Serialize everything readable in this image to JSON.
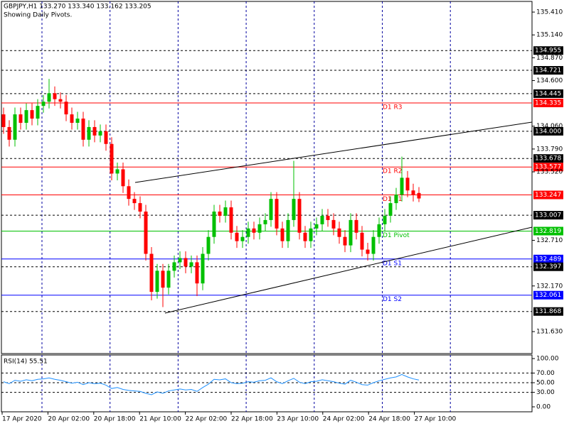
{
  "chart_data": {
    "type": "candlestick",
    "header": "GBPJPY,H1  133.270 133.340 133.162 133.205",
    "subtitle": "Showing Daily Pivots.",
    "up_color": "#00c000",
    "down_color": "#ff0000",
    "ylim": [
      131.37,
      135.553
    ],
    "yticks": [
      {
        "value": 135.41,
        "label": "135.410"
      },
      {
        "value": 135.14,
        "label": "135.140"
      },
      {
        "value": 134.87,
        "label": "134.870"
      },
      {
        "value": 134.6,
        "label": "134.600"
      },
      {
        "value": 134.06,
        "label": "134.060"
      },
      {
        "value": 133.79,
        "label": "133.790"
      },
      {
        "value": 133.52,
        "label": "133.520"
      },
      {
        "value": 132.71,
        "label": "132.710"
      },
      {
        "value": 132.17,
        "label": "132.170"
      },
      {
        "value": 131.63,
        "label": "131.630"
      }
    ],
    "x_labels": [
      "17 Apr 2020",
      "20 Apr 02:00",
      "20 Apr 18:00",
      "21 Apr 10:00",
      "22 Apr 02:00",
      "22 Apr 18:00",
      "23 Apr 10:00",
      "24 Apr 02:00",
      "24 Apr 18:00",
      "27 Apr 10:00"
    ],
    "open": [
      134.2,
      134.05,
      133.9,
      134.2,
      134.1,
      134.25,
      134.15,
      134.3,
      134.35,
      134.45,
      134.38,
      134.35,
      134.2,
      134.1,
      134.15,
      133.9,
      134.05,
      133.95,
      134.0,
      133.85,
      133.5,
      133.55,
      133.35,
      133.2,
      133.15,
      133.05,
      132.55,
      132.1,
      132.35,
      132.15,
      132.35,
      132.45,
      132.5,
      132.4,
      132.45,
      132.2,
      132.55,
      132.75,
      133.05,
      133.0,
      133.1,
      132.8,
      132.7,
      132.75,
      132.85,
      132.8,
      132.9,
      132.95,
      133.2,
      132.85,
      132.7,
      132.95,
      133.2,
      132.8,
      132.7,
      132.85,
      132.9,
      133.0,
      132.95,
      132.85,
      132.75,
      132.65,
      132.95,
      132.8,
      132.6,
      132.55,
      132.75,
      132.9,
      133.0,
      133.15,
      133.25,
      133.45,
      133.3,
      133.27
    ],
    "high": [
      134.28,
      134.13,
      134.28,
      134.28,
      134.33,
      134.33,
      134.38,
      134.43,
      134.62,
      134.53,
      134.46,
      134.43,
      134.28,
      134.23,
      134.23,
      134.13,
      134.13,
      134.08,
      134.08,
      133.93,
      133.63,
      133.63,
      133.43,
      133.28,
      133.23,
      133.13,
      132.63,
      132.43,
      132.43,
      132.43,
      132.53,
      132.58,
      132.58,
      132.53,
      132.53,
      132.63,
      132.83,
      133.13,
      133.13,
      133.18,
      133.18,
      132.88,
      132.83,
      132.93,
      132.93,
      132.98,
      133.03,
      133.28,
      133.28,
      132.93,
      133.03,
      133.65,
      133.28,
      132.88,
      132.93,
      132.98,
      133.08,
      133.08,
      133.03,
      132.93,
      132.83,
      133.03,
      133.03,
      132.88,
      132.68,
      132.83,
      132.98,
      133.08,
      133.23,
      133.33,
      133.7,
      133.53,
      133.38,
      133.34
    ],
    "low": [
      133.97,
      133.82,
      133.82,
      134.02,
      134.02,
      134.07,
      134.07,
      134.22,
      134.27,
      134.3,
      134.27,
      134.12,
      134.02,
      134.02,
      133.82,
      133.82,
      133.87,
      133.87,
      133.77,
      133.42,
      133.42,
      133.27,
      133.12,
      133.07,
      132.97,
      132.47,
      132.0,
      132.02,
      131.92,
      132.07,
      132.27,
      132.37,
      132.32,
      132.32,
      132.05,
      132.12,
      132.47,
      132.67,
      132.92,
      132.92,
      132.72,
      132.62,
      132.62,
      132.67,
      132.72,
      132.72,
      132.82,
      132.87,
      132.77,
      132.62,
      132.62,
      132.87,
      132.72,
      132.62,
      132.62,
      132.77,
      132.82,
      132.87,
      132.77,
      132.67,
      132.57,
      132.57,
      132.72,
      132.52,
      132.47,
      132.47,
      132.67,
      132.82,
      132.92,
      133.07,
      133.17,
      133.22,
      133.17,
      133.162
    ],
    "close": [
      134.05,
      133.9,
      134.2,
      134.1,
      134.25,
      134.15,
      134.3,
      134.35,
      134.45,
      134.38,
      134.35,
      134.2,
      134.1,
      134.15,
      133.9,
      134.05,
      133.95,
      134.0,
      133.85,
      133.5,
      133.55,
      133.35,
      133.2,
      133.15,
      133.05,
      132.55,
      132.1,
      132.35,
      132.15,
      132.35,
      132.45,
      132.5,
      132.4,
      132.45,
      132.2,
      132.55,
      132.75,
      133.05,
      133.0,
      133.1,
      132.8,
      132.7,
      132.75,
      132.85,
      132.8,
      132.9,
      132.95,
      133.2,
      132.85,
      132.7,
      132.95,
      133.2,
      132.8,
      132.7,
      132.85,
      132.9,
      133.0,
      132.95,
      132.85,
      132.75,
      132.65,
      132.95,
      132.8,
      132.6,
      132.55,
      132.75,
      132.9,
      133.0,
      133.15,
      133.25,
      133.45,
      133.3,
      133.25,
      133.205
    ],
    "levels": [
      {
        "value": 134.955,
        "label": "134.955",
        "color": "#000000",
        "dashed": true
      },
      {
        "value": 134.721,
        "label": "134.721",
        "color": "#000000",
        "dashed": true
      },
      {
        "value": 134.445,
        "label": "134.445",
        "color": "#000000",
        "dashed": true
      },
      {
        "value": 134.335,
        "label": "134.335",
        "name": "D1 R3",
        "color": "#ff0000",
        "dashed": false
      },
      {
        "value": 134.0,
        "label": "134.000",
        "color": "#000000",
        "dashed": true
      },
      {
        "value": 133.678,
        "label": "133.678",
        "color": "#000000",
        "dashed": true
      },
      {
        "value": 133.577,
        "label": "133.577",
        "name": "D1 R2",
        "color": "#ff0000",
        "dashed": false
      },
      {
        "value": 133.247,
        "label": "133.247",
        "name": "D1 R1",
        "color": "#ff0000",
        "dashed": false
      },
      {
        "value": 133.007,
        "label": "133.007",
        "color": "#000000",
        "dashed": true
      },
      {
        "value": 132.819,
        "label": "132.819",
        "name": "D1 Pivot",
        "color": "#00c000",
        "dashed": false
      },
      {
        "value": 132.489,
        "label": "132.489",
        "name": "D1 S1",
        "color": "#0000ff",
        "dashed": false
      },
      {
        "value": 132.397,
        "label": "132.397",
        "color": "#000000",
        "dashed": true
      },
      {
        "value": 132.061,
        "label": "132.061",
        "name": "D1 S2",
        "color": "#0000ff",
        "dashed": false
      },
      {
        "value": 131.868,
        "label": "131.868",
        "color": "#000000",
        "dashed": true
      }
    ],
    "rsi": {
      "title": "RSI(14) 55.51",
      "color": "#1e90ff",
      "ylim": [
        -10.3,
        107.4
      ],
      "yticks": [
        {
          "value": 100,
          "label": "100.00"
        },
        {
          "value": 70,
          "label": "70.00"
        },
        {
          "value": 50,
          "label": "50.00"
        },
        {
          "value": 30,
          "label": "30.00"
        },
        {
          "value": 0,
          "label": "0.00"
        }
      ],
      "values": [
        52,
        48,
        55,
        53,
        56,
        54,
        57,
        58,
        60,
        57,
        55,
        52,
        49,
        51,
        46,
        50,
        48,
        49,
        45,
        38,
        40,
        36,
        34,
        33,
        32,
        28,
        25,
        31,
        28,
        33,
        35,
        37,
        35,
        36,
        32,
        40,
        47,
        57,
        56,
        58,
        50,
        48,
        49,
        52,
        51,
        54,
        55,
        60,
        52,
        48,
        54,
        59,
        51,
        48,
        52,
        53,
        56,
        54,
        52,
        49,
        47,
        55,
        51,
        46,
        45,
        50,
        54,
        57,
        60,
        62,
        67,
        62,
        58,
        55.51
      ]
    }
  }
}
